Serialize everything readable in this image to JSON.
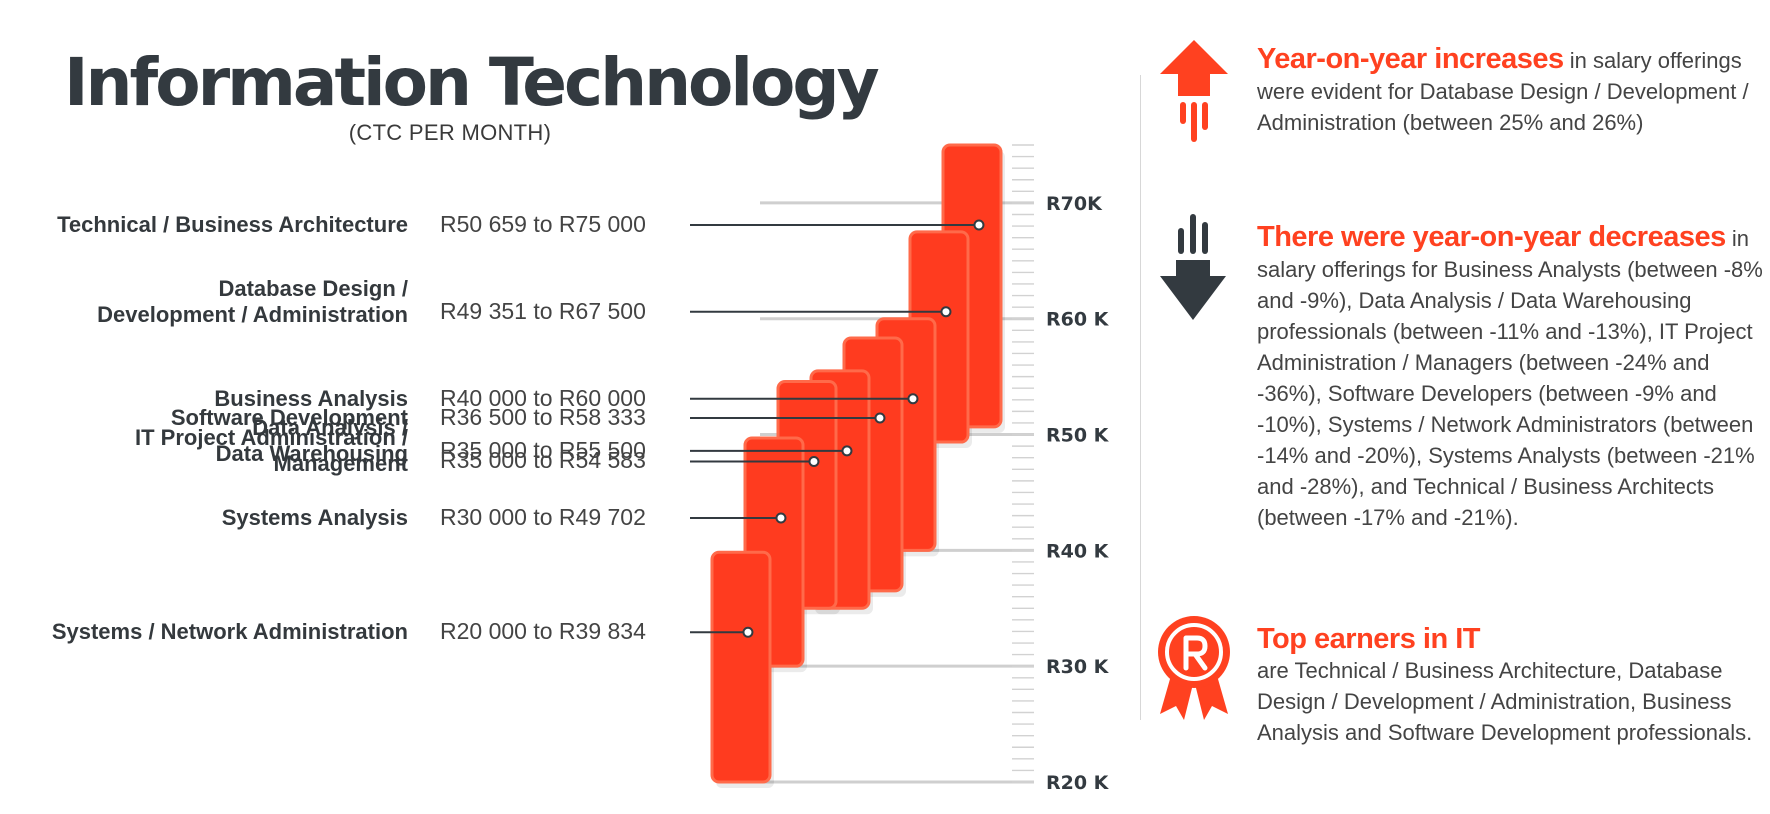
{
  "page": {
    "title": "Information Technology",
    "subtitle": "(CTC PER MONTH)"
  },
  "colors": {
    "bar": "#ff3b1f",
    "bar_edge": "#ff6a4a",
    "accent": "#ff4120",
    "dark": "#333a40"
  },
  "chart_data": {
    "type": "range-bar",
    "title": "Information Technology",
    "subtitle": "(CTC PER MONTH)",
    "ylim": [
      20000,
      75000
    ],
    "y_ticks": [
      {
        "value": 20000,
        "label": "R20 K"
      },
      {
        "value": 30000,
        "label": "R30 K"
      },
      {
        "value": 40000,
        "label": "R40 K"
      },
      {
        "value": 50000,
        "label": "R50 K"
      },
      {
        "value": 60000,
        "label": "R60 K"
      },
      {
        "value": 70000,
        "label": "R70K"
      }
    ],
    "categories": [
      {
        "label_lines": [
          "Technical / Business Architecture"
        ],
        "range_text": "R50 659 to R75 000",
        "min": 50659,
        "max": 75000
      },
      {
        "label_lines": [
          "Database Design /",
          "Development / Administration"
        ],
        "range_text": "R49 351 to R67 500",
        "min": 49351,
        "max": 67500
      },
      {
        "label_lines": [
          "Business Analysis"
        ],
        "range_text": "R40 000 to R60 000",
        "min": 40000,
        "max": 60000
      },
      {
        "label_lines": [
          "Software Development"
        ],
        "range_text": "R36 500 to R58 333",
        "min": 36500,
        "max": 58333
      },
      {
        "label_lines": [
          "Data Analysis /",
          "Data Warehousing"
        ],
        "range_text": "R35 000 to R55 500",
        "min": 35000,
        "max": 55500
      },
      {
        "label_lines": [
          "IT Project Administration /",
          "Management"
        ],
        "range_text": "R35 000 to R54 583",
        "min": 35000,
        "max": 54583
      },
      {
        "label_lines": [
          "Systems Analysis"
        ],
        "range_text": "R30 000 to R49 702",
        "min": 30000,
        "max": 49702
      },
      {
        "label_lines": [
          "Systems / Network Administration"
        ],
        "range_text": "R20 000 to R39 834",
        "min": 20000,
        "max": 39834
      }
    ]
  },
  "sidebar": {
    "increase": {
      "icon": "arrow-up-icon",
      "headline": "Year-on-year increases",
      "body": " in salary offerings were evident for Database Design / Development / Administration (between 25% and 26%)"
    },
    "decrease": {
      "icon": "arrow-down-icon",
      "headline": "There were year-on-year decreases",
      "body": " in salary offerings for Business Analysts (between -8% and -9%), Data Analysis / Data Warehousing professionals (between -11% and -13%), IT Project Administration / Managers (between -24% and -36%), Software Developers (between -9% and -10%), Systems / Network Administrators (between -14% and -20%), Systems Analysts (between -21% and -28%), and Technical / Business Architects (between -17% and -21%)."
    },
    "top": {
      "icon": "award-ribbon-icon",
      "headline": "Top earners in IT",
      "body": "are Technical / Business Architecture, Database Design / Development / Administration, Business Analysis and Software Development professionals."
    }
  }
}
